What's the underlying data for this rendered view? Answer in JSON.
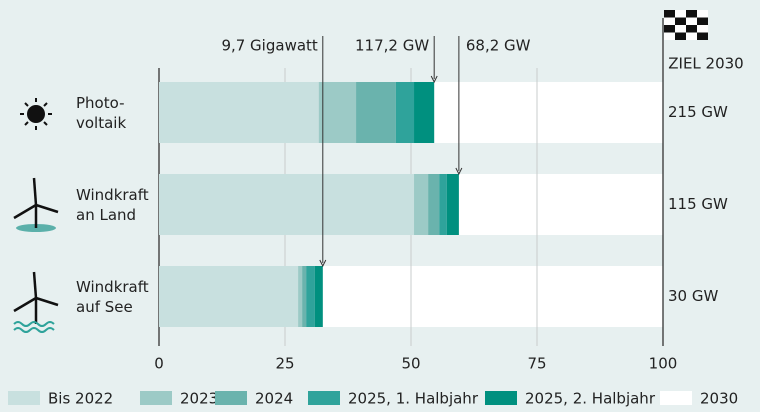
{
  "chart_data": {
    "type": "stacked_barh",
    "categories": [
      "Photo-\nvoltaik",
      "Windkraft\nan Land",
      "Windkraft\nauf See"
    ],
    "series": [
      {
        "name": "Bis 2022",
        "color": "#c8e0df",
        "values": [
          31.7,
          50.6,
          27.6
        ]
      },
      {
        "name": "2023",
        "color": "#9ccac6",
        "values": [
          7.4,
          2.8,
          0.8
        ]
      },
      {
        "name": "2024",
        "color": "#6ab3ad",
        "values": [
          7.9,
          2.2,
          0.8
        ]
      },
      {
        "name": "2025, 1. Halbjahr",
        "color": "#2fa39b",
        "values": [
          3.6,
          1.5,
          1.7
        ]
      },
      {
        "name": "2025, 2. Halbjahr",
        "color": "#00907f",
        "values": [
          4.0,
          2.4,
          1.6
        ]
      },
      {
        "name": "2030",
        "color": "#ffffff",
        "values": [
          45.4,
          40.5,
          67.5
        ]
      }
    ],
    "xlim": [
      0,
      100
    ],
    "xticks": [
      0,
      25,
      50,
      75,
      100
    ],
    "grid": true,
    "target_title": "ZIEL 2030",
    "targets": [
      "215 GW",
      "115 GW",
      "30 GW"
    ],
    "annotations": [
      "9,7 Gigawatt",
      "117,2 GW",
      "68,2 GW"
    ]
  }
}
